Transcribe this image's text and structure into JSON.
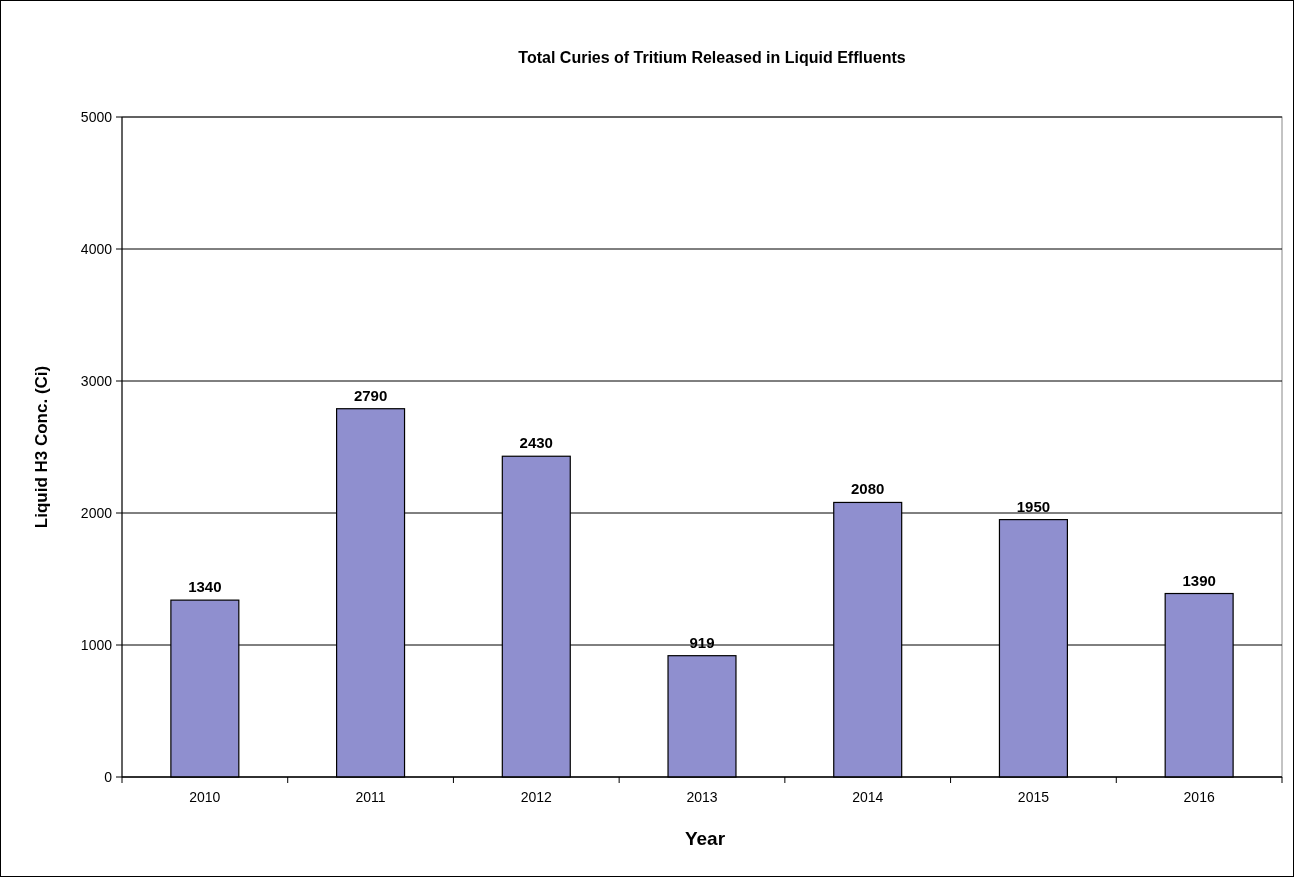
{
  "chart_data": {
    "type": "bar",
    "title": "Total Curies of Tritium Released in Liquid Effluents",
    "xlabel": "Year",
    "ylabel": "Liquid H3 Conc. (Ci)",
    "categories": [
      "2010",
      "2011",
      "2012",
      "2013",
      "2014",
      "2015",
      "2016"
    ],
    "values": [
      1340,
      2790,
      2430,
      919,
      2080,
      1950,
      1390
    ],
    "color": "#8f8fcf",
    "ylim": [
      0,
      5000
    ],
    "yticks": [
      0,
      1000,
      2000,
      3000,
      4000,
      5000
    ],
    "grid": "y",
    "data_labels": true
  }
}
